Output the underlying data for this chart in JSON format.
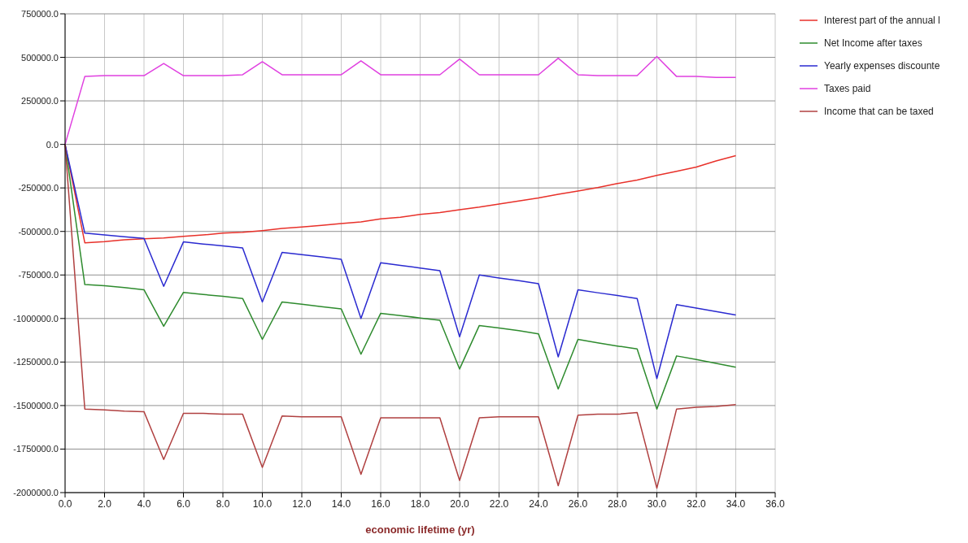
{
  "chart_data": {
    "type": "line",
    "xlabel": "economic lifetime (yr)",
    "x": [
      0,
      1,
      2,
      3,
      4,
      5,
      6,
      7,
      8,
      9,
      10,
      11,
      12,
      13,
      14,
      15,
      16,
      17,
      18,
      19,
      20,
      21,
      22,
      23,
      24,
      25,
      26,
      27,
      28,
      29,
      30,
      31,
      32,
      33,
      34
    ],
    "xlim": [
      0,
      36
    ],
    "xticks": [
      {
        "value": 0,
        "label": "0.0"
      },
      {
        "value": 2,
        "label": "2.0"
      },
      {
        "value": 4,
        "label": "4.0"
      },
      {
        "value": 6,
        "label": "6.0"
      },
      {
        "value": 8,
        "label": "8.0"
      },
      {
        "value": 10,
        "label": "10.0"
      },
      {
        "value": 12,
        "label": "12.0"
      },
      {
        "value": 14,
        "label": "14.0"
      },
      {
        "value": 16,
        "label": "16.0"
      },
      {
        "value": 18,
        "label": "18.0"
      },
      {
        "value": 20,
        "label": "20.0"
      },
      {
        "value": 22,
        "label": "22.0"
      },
      {
        "value": 24,
        "label": "24.0"
      },
      {
        "value": 26,
        "label": "26.0"
      },
      {
        "value": 28,
        "label": "28.0"
      },
      {
        "value": 30,
        "label": "30.0"
      },
      {
        "value": 32,
        "label": "32.0"
      },
      {
        "value": 34,
        "label": "34.0"
      },
      {
        "value": 36,
        "label": "36.0"
      }
    ],
    "ylim": [
      -2000000,
      750000
    ],
    "yticks": [
      {
        "value": -2000000,
        "label": "-2000000.0"
      },
      {
        "value": -1750000,
        "label": "-1750000.0"
      },
      {
        "value": -1500000,
        "label": "-1500000.0"
      },
      {
        "value": -1250000,
        "label": "-1250000.0"
      },
      {
        "value": -1000000,
        "label": "-1000000.0"
      },
      {
        "value": -750000,
        "label": "-750000.0"
      },
      {
        "value": -500000,
        "label": "-500000.0"
      },
      {
        "value": -250000,
        "label": "-250000.0"
      },
      {
        "value": 0,
        "label": "0.0"
      },
      {
        "value": 250000,
        "label": "250000.0"
      },
      {
        "value": 500000,
        "label": "500000.0"
      },
      {
        "value": 750000,
        "label": "750000.0"
      }
    ],
    "grid": true,
    "legend": "top right",
    "marker": "none",
    "line_style": "solid",
    "series": [
      {
        "name": "Interest part of the annual l",
        "color": "#e8312a",
        "values": [
          0,
          -565000,
          -558000,
          -548000,
          -542000,
          -538000,
          -528000,
          -520000,
          -510000,
          -505000,
          -495000,
          -483000,
          -475000,
          -465000,
          -455000,
          -445000,
          -428000,
          -418000,
          -402000,
          -392000,
          -375000,
          -360000,
          -342000,
          -325000,
          -308000,
          -287000,
          -268000,
          -248000,
          -225000,
          -205000,
          -178000,
          -155000,
          -130000,
          -95000,
          -65000
        ]
      },
      {
        "name": "Net Income after taxes",
        "color": "#2e8b2e",
        "values": [
          0,
          -805000,
          -812000,
          -822000,
          -835000,
          -1045000,
          -850000,
          -862000,
          -873000,
          -885000,
          -1120000,
          -905000,
          -918000,
          -932000,
          -945000,
          -1205000,
          -970000,
          -983000,
          -997000,
          -1010000,
          -1290000,
          -1040000,
          -1055000,
          -1070000,
          -1088000,
          -1405000,
          -1120000,
          -1140000,
          -1158000,
          -1175000,
          -1520000,
          -1215000,
          -1235000,
          -1258000,
          -1280000
        ]
      },
      {
        "name": "Yearly expenses discounte",
        "color": "#2a2ad0",
        "values": [
          0,
          -510000,
          -520000,
          -530000,
          -540000,
          -815000,
          -560000,
          -572000,
          -583000,
          -595000,
          -905000,
          -620000,
          -633000,
          -646000,
          -660000,
          -1000000,
          -680000,
          -695000,
          -710000,
          -725000,
          -1105000,
          -750000,
          -767000,
          -783000,
          -800000,
          -1220000,
          -835000,
          -852000,
          -868000,
          -885000,
          -1345000,
          -920000,
          -940000,
          -960000,
          -980000
        ]
      },
      {
        "name": "Taxes paid",
        "color": "#e040e0",
        "values": [
          0,
          390000,
          395000,
          395000,
          395000,
          465000,
          395000,
          395000,
          395000,
          400000,
          475000,
          400000,
          400000,
          400000,
          400000,
          480000,
          400000,
          400000,
          400000,
          400000,
          490000,
          400000,
          400000,
          400000,
          400000,
          495000,
          400000,
          395000,
          395000,
          395000,
          505000,
          390000,
          390000,
          385000,
          385000
        ]
      },
      {
        "name": "Income that can be taxed",
        "color": "#b04040",
        "values": [
          0,
          -1520000,
          -1525000,
          -1532000,
          -1535000,
          -1810000,
          -1545000,
          -1545000,
          -1550000,
          -1550000,
          -1855000,
          -1560000,
          -1565000,
          -1565000,
          -1565000,
          -1895000,
          -1570000,
          -1570000,
          -1570000,
          -1570000,
          -1930000,
          -1570000,
          -1565000,
          -1565000,
          -1565000,
          -1960000,
          -1555000,
          -1550000,
          -1550000,
          -1540000,
          -1975000,
          -1520000,
          -1510000,
          -1505000,
          -1495000
        ]
      }
    ]
  }
}
